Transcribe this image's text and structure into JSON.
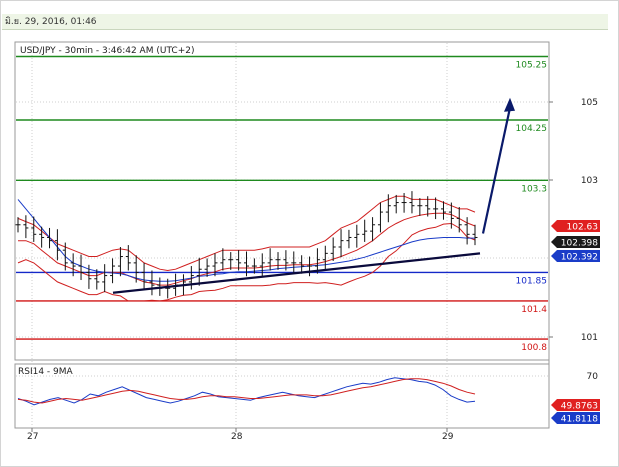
{
  "header": {
    "date_text": "มิ.ย. 29, 2016, 01:46"
  },
  "chart_data": [
    {
      "type": "line",
      "title": "USD/JPY - 30min - 3:46:42 AM (UTC+2)",
      "x_tick_labels": [
        "27",
        "28",
        "29"
      ],
      "y_tick_labels": [
        "105",
        "103",
        "101"
      ],
      "ylim": [
        100.5,
        106.2
      ],
      "grid": true,
      "horizontal_levels": [
        {
          "value": 105.25,
          "label": "105.25",
          "color": "#1f8a1f"
        },
        {
          "value": 104.25,
          "label": "104.25",
          "color": "#1f8a1f"
        },
        {
          "value": 103.3,
          "label": "103.3",
          "color": "#1f8a1f"
        },
        {
          "value": 101.85,
          "label": "101.85",
          "color": "#1428c8"
        },
        {
          "value": 101.4,
          "label": "101.4",
          "color": "#d01414"
        },
        {
          "value": 100.8,
          "label": "100.8",
          "color": "#d01414"
        }
      ],
      "price_badges": [
        {
          "value": 102.63,
          "label": "102.63",
          "color": "#e02020"
        },
        {
          "value": 102.398,
          "label": "102.398",
          "color": "#1a1a1a"
        },
        {
          "value": 102.392,
          "label": "102.392",
          "color": "#1a3cc8"
        }
      ],
      "series": [
        {
          "values": [
            102.6,
            102.55,
            102.45,
            102.4,
            102.35,
            102.2,
            102.0,
            101.95,
            101.85,
            101.75,
            101.7,
            101.8,
            101.95,
            102.1,
            102.0,
            101.85,
            101.7,
            101.65,
            101.6,
            101.6,
            101.65,
            101.7,
            101.8,
            101.9,
            101.95,
            102.0,
            102.05,
            102.05,
            102.0,
            101.95,
            101.95,
            102.0,
            102.05,
            102.05,
            102.0,
            102.0,
            101.95,
            101.95,
            102.05,
            102.15,
            102.25,
            102.35,
            102.4,
            102.45,
            102.5,
            102.6,
            102.8,
            102.9,
            102.95,
            102.95,
            102.9,
            102.9,
            102.85,
            102.85,
            102.8,
            102.7,
            102.6,
            102.45,
            102.4
          ]
        },
        {
          "values": [
            102.35,
            102.35,
            102.3,
            102.2,
            102.1,
            102.0,
            101.95,
            101.9,
            101.85,
            101.8,
            101.8,
            101.85,
            101.85,
            101.85,
            101.8,
            101.75,
            101.7,
            101.68,
            101.65,
            101.65,
            101.68,
            101.72,
            101.75,
            101.8,
            101.83,
            101.86,
            101.9,
            101.92,
            101.92,
            101.92,
            101.92,
            101.93,
            101.95,
            101.96,
            101.96,
            101.97,
            101.97,
            101.97,
            101.99,
            102.02,
            102.06,
            102.1,
            102.15,
            102.2,
            102.27,
            102.35,
            102.45,
            102.55,
            102.62,
            102.68,
            102.72,
            102.75,
            102.77,
            102.78,
            102.78,
            102.76,
            102.7,
            102.63,
            102.58
          ]
        },
        {
          "values": [
            102.7,
            102.65,
            102.6,
            102.5,
            102.4,
            102.3,
            102.25,
            102.2,
            102.15,
            102.1,
            102.1,
            102.15,
            102.2,
            102.22,
            102.2,
            102.1,
            102.0,
            101.95,
            101.9,
            101.88,
            101.9,
            101.95,
            102.0,
            102.05,
            102.1,
            102.15,
            102.2,
            102.2,
            102.2,
            102.2,
            102.2,
            102.22,
            102.25,
            102.25,
            102.25,
            102.25,
            102.25,
            102.25,
            102.3,
            102.35,
            102.45,
            102.55,
            102.6,
            102.65,
            102.75,
            102.85,
            102.95,
            103.0,
            103.05,
            103.05,
            103.0,
            103.0,
            103.0,
            103.0,
            102.95,
            102.9,
            102.85,
            102.85,
            102.8
          ]
        },
        {
          "values": [
            102.0,
            102.05,
            102.0,
            101.9,
            101.8,
            101.7,
            101.65,
            101.6,
            101.55,
            101.5,
            101.5,
            101.55,
            101.5,
            101.48,
            101.4,
            101.4,
            101.4,
            101.41,
            101.4,
            101.42,
            101.46,
            101.49,
            101.5,
            101.55,
            101.56,
            101.57,
            101.6,
            101.64,
            101.64,
            101.64,
            101.64,
            101.64,
            101.65,
            101.67,
            101.67,
            101.69,
            101.69,
            101.69,
            101.68,
            101.69,
            101.67,
            101.65,
            101.7,
            101.75,
            101.79,
            101.85,
            101.95,
            102.1,
            102.19,
            102.31,
            102.44,
            102.5,
            102.54,
            102.56,
            102.61,
            102.62,
            102.55,
            102.41,
            102.36
          ]
        },
        {
          "values": [
            103.0,
            102.85,
            102.7,
            102.55,
            102.4,
            102.25,
            102.1,
            102.0,
            101.95,
            101.9,
            101.87,
            101.85,
            101.84,
            101.83,
            101.8,
            101.76,
            101.73,
            101.72,
            101.71,
            101.71,
            101.72,
            101.74,
            101.76,
            101.79,
            101.8,
            101.82,
            101.83,
            101.85,
            101.86,
            101.86,
            101.87,
            101.88,
            101.89,
            101.91,
            101.92,
            101.93,
            101.94,
            101.95,
            101.96,
            101.97,
            101.99,
            102.01,
            102.03,
            102.06,
            102.09,
            102.13,
            102.17,
            102.21,
            102.25,
            102.29,
            102.33,
            102.36,
            102.38,
            102.39,
            102.4,
            102.4,
            102.4,
            102.39,
            102.39
          ]
        }
      ],
      "annotations": {
        "blue_trendline": [
          101.53,
          102.15
        ],
        "projection_arrow_target": 104.6
      }
    },
    {
      "type": "line",
      "title": "RSI14 - 9MA",
      "y_tick_labels": [
        "70"
      ],
      "ylim": [
        20,
        80
      ],
      "badges": [
        {
          "value": 49.8763,
          "label": "49.8763",
          "color": "#e02020"
        },
        {
          "value": 41.8118,
          "label": "41.8118",
          "color": "#1a3cc8"
        }
      ],
      "series": [
        {
          "values": [
            45,
            42,
            38,
            41,
            44,
            46,
            43,
            40,
            44,
            50,
            48,
            52,
            55,
            58,
            54,
            50,
            46,
            44,
            42,
            40,
            42,
            45,
            48,
            52,
            50,
            47,
            46,
            45,
            44,
            43,
            46,
            48,
            50,
            52,
            50,
            48,
            47,
            46,
            49,
            52,
            55,
            58,
            60,
            62,
            61,
            63,
            66,
            68,
            67,
            66,
            64,
            63,
            60,
            55,
            48,
            44,
            41,
            42
          ]
        },
        {
          "values": [
            44,
            43,
            41,
            40,
            42,
            44,
            45,
            44,
            43,
            45,
            47,
            49,
            51,
            53,
            54,
            53,
            51,
            49,
            47,
            45,
            44,
            44,
            45,
            47,
            48,
            48,
            47,
            47,
            46,
            45,
            45,
            46,
            47,
            48,
            49,
            49,
            49,
            48,
            48,
            49,
            51,
            53,
            55,
            57,
            58,
            60,
            62,
            64,
            66,
            67,
            67,
            66,
            64,
            62,
            59,
            55,
            52,
            50
          ]
        }
      ]
    }
  ]
}
